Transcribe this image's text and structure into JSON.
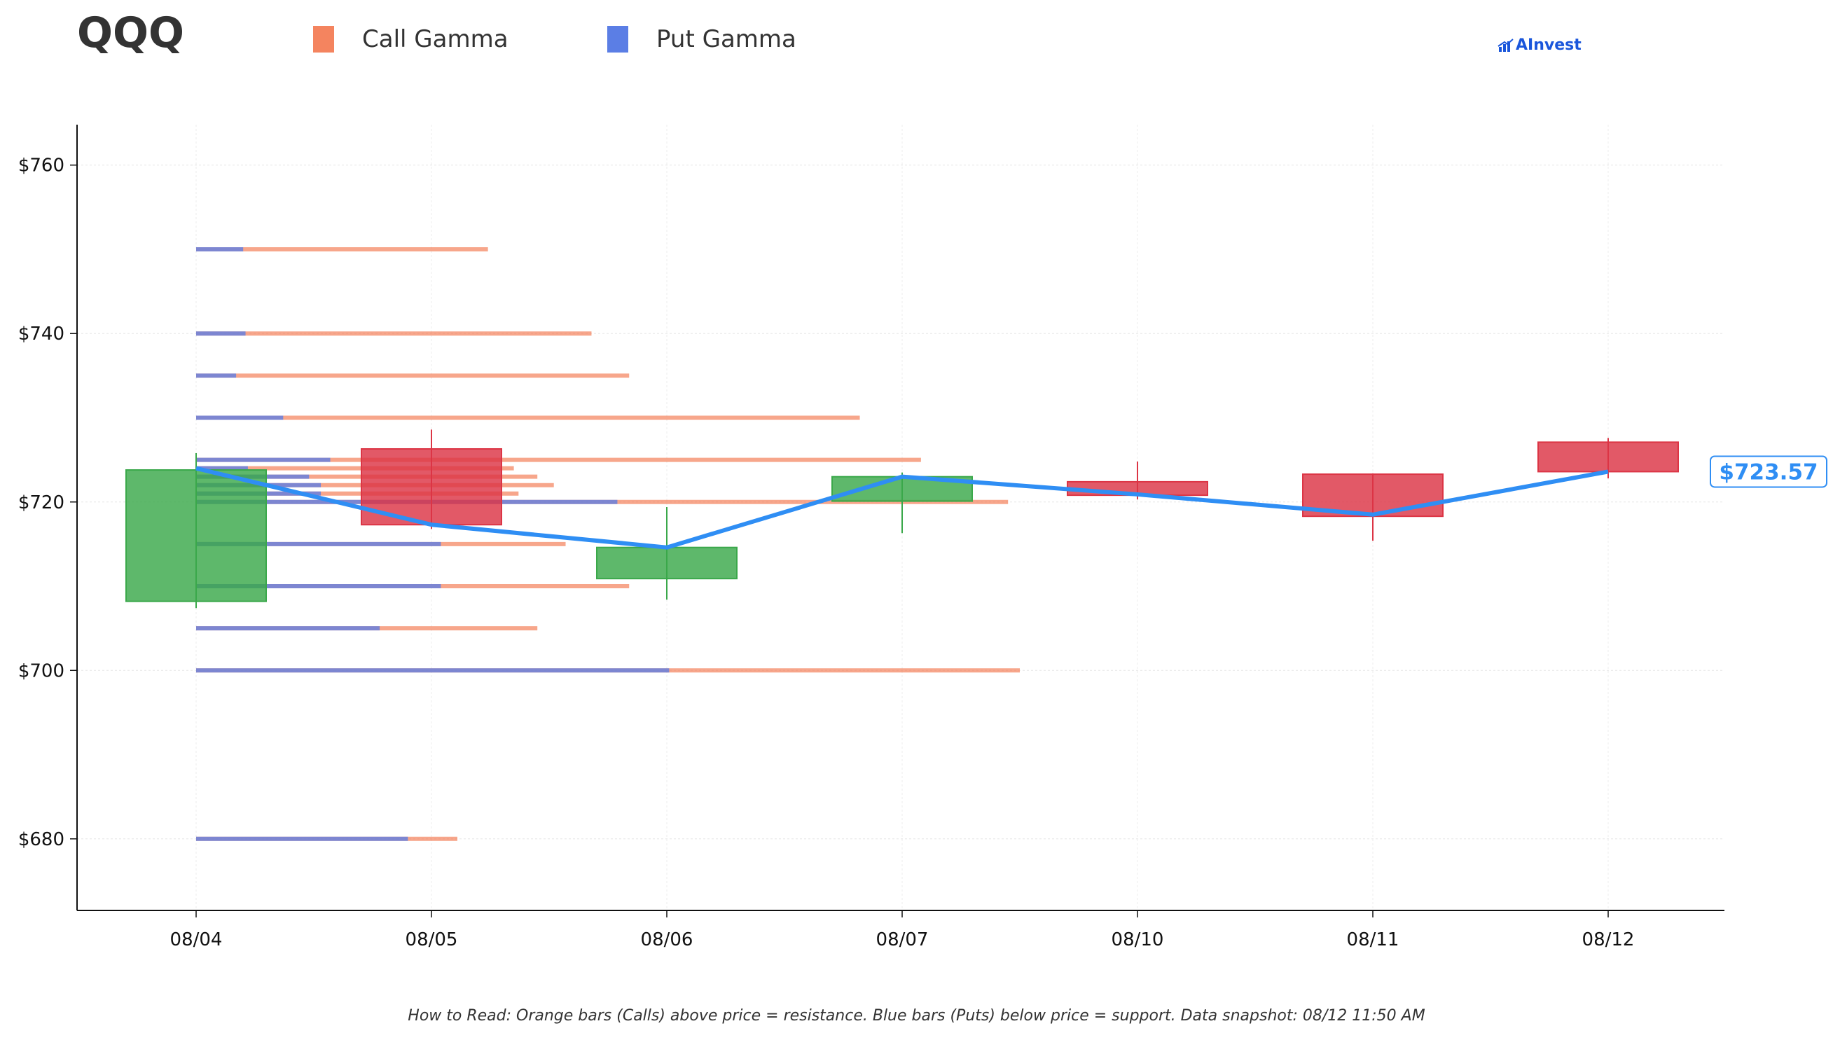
{
  "header": {
    "ticker": "QQQ",
    "brand": "AInvest"
  },
  "footer": {
    "note": "How to Read: Orange bars (Calls) above price = resistance. Blue bars (Puts) below price = support. Data snapshot: 08/12 11:50 AM"
  },
  "colors": {
    "call": "#f4845f",
    "put": "#5b7ee5",
    "up": "#3aa84a",
    "down": "#dc3545",
    "line": "#2f8ef4"
  },
  "chart_data": {
    "type": "candlestick",
    "title": "QQQ",
    "legend": [
      {
        "name": "Call Gamma",
        "color": "#f4845f"
      },
      {
        "name": "Put Gamma",
        "color": "#5b7ee5"
      }
    ],
    "legend_position": "top-left",
    "categories": [
      "08/04",
      "08/05",
      "08/06",
      "08/07",
      "08/10",
      "08/11",
      "08/12"
    ],
    "y_ticks": [
      "$680",
      "$700",
      "$720",
      "$740",
      "$760"
    ],
    "ylim": [
      671.5,
      764.8
    ],
    "grid": true,
    "candles": [
      {
        "date": "08/04",
        "open": 708.2,
        "close": 723.8,
        "high": 725.8,
        "low": 707.4
      },
      {
        "date": "08/05",
        "open": 726.3,
        "close": 717.3,
        "high": 728.6,
        "low": 716.8
      },
      {
        "date": "08/06",
        "open": 710.9,
        "close": 714.6,
        "high": 719.4,
        "low": 708.4
      },
      {
        "date": "08/07",
        "open": 720.1,
        "close": 723.0,
        "high": 723.5,
        "low": 716.3
      },
      {
        "date": "08/10",
        "open": 722.4,
        "close": 720.8,
        "high": 724.8,
        "low": 720.3
      },
      {
        "date": "08/11",
        "open": 723.3,
        "close": 718.3,
        "high": 723.4,
        "low": 715.4
      },
      {
        "date": "08/12",
        "open": 727.1,
        "close": 723.6,
        "high": 727.6,
        "low": 722.8
      }
    ],
    "price_line": {
      "values": [
        724.0,
        717.3,
        714.6,
        723.0,
        720.9,
        718.5,
        723.6
      ],
      "current_label": "$723.57"
    },
    "gamma_levels": [
      {
        "strike": 750,
        "put": 0.2,
        "call": 1.24
      },
      {
        "strike": 740,
        "put": 0.21,
        "call": 1.68
      },
      {
        "strike": 735,
        "put": 0.17,
        "call": 1.84
      },
      {
        "strike": 730,
        "put": 0.37,
        "call": 2.82
      },
      {
        "strike": 725,
        "put": 0.57,
        "call": 3.08
      },
      {
        "strike": 724,
        "put": 0.22,
        "call": 1.35
      },
      {
        "strike": 723,
        "put": 0.48,
        "call": 1.45
      },
      {
        "strike": 722,
        "put": 0.53,
        "call": 1.52
      },
      {
        "strike": 721,
        "put": 0.53,
        "call": 1.37
      },
      {
        "strike": 720,
        "put": 1.79,
        "call": 3.45
      },
      {
        "strike": 715,
        "put": 1.04,
        "call": 1.57
      },
      {
        "strike": 710,
        "put": 1.04,
        "call": 1.84
      },
      {
        "strike": 705,
        "put": 0.78,
        "call": 1.45
      },
      {
        "strike": 700,
        "put": 2.01,
        "call": 3.5
      },
      {
        "strike": 680,
        "put": 0.9,
        "call": 1.11
      }
    ]
  }
}
